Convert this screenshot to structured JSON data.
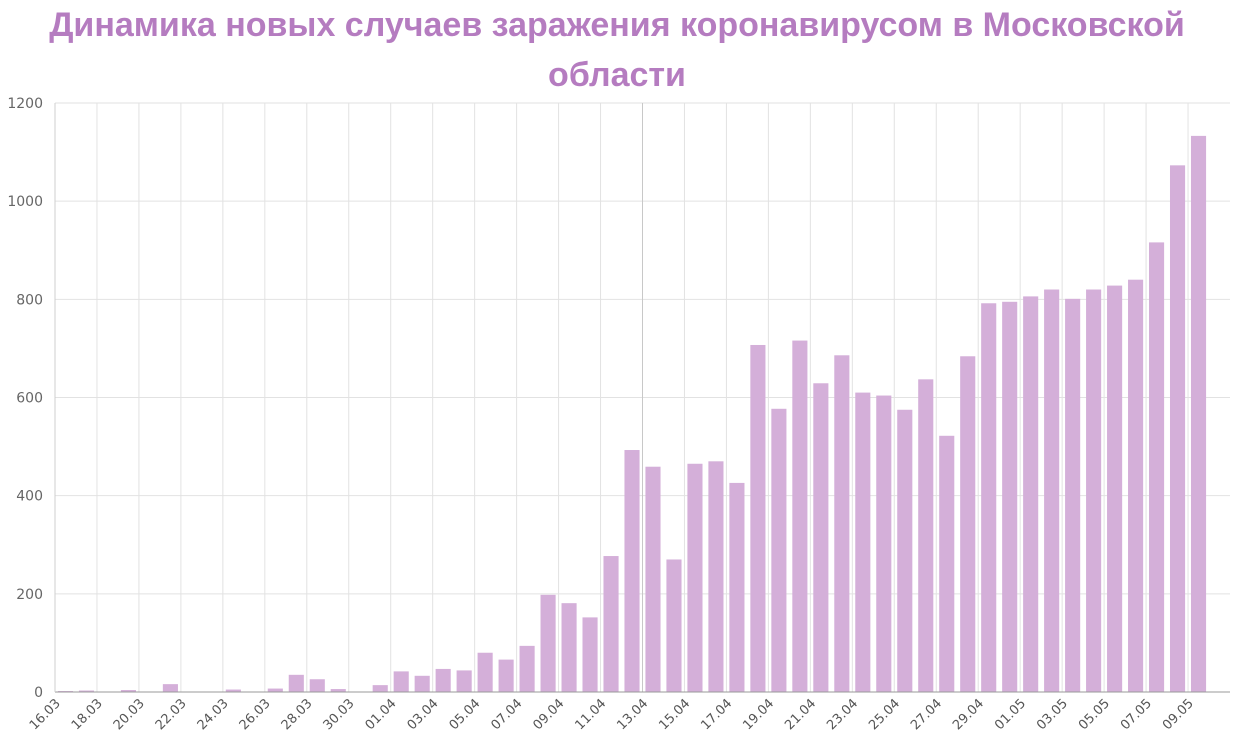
{
  "chart_data": {
    "type": "bar",
    "title": "Динамика новых случаев заражения коронавирусом в Московской области",
    "xlabel": "",
    "ylabel": "",
    "ylim": [
      0,
      1200
    ],
    "yticks": [
      0,
      200,
      400,
      600,
      800,
      1000,
      1200
    ],
    "grid": true,
    "bar_color": "#d4afd9",
    "title_color": "#b57cc0",
    "categories": [
      "16.03",
      "17.03",
      "18.03",
      "19.03",
      "20.03",
      "21.03",
      "22.03",
      "23.03",
      "24.03",
      "25.03",
      "26.03",
      "27.03",
      "28.03",
      "29.03",
      "30.03",
      "31.03",
      "01.04",
      "02.04",
      "03.04",
      "04.04",
      "05.04",
      "06.04",
      "07.04",
      "08.04",
      "09.04",
      "10.04",
      "11.04",
      "12.04",
      "13.04",
      "14.04",
      "15.04",
      "16.04",
      "17.04",
      "18.04",
      "19.04",
      "20.04",
      "21.04",
      "22.04",
      "23.04",
      "24.04",
      "25.04",
      "26.04",
      "27.04",
      "28.04",
      "29.04",
      "30.04",
      "01.05",
      "02.05",
      "03.05",
      "04.05",
      "05.05",
      "06.05",
      "07.05",
      "08.05",
      "09.05",
      "10.05"
    ],
    "visible_tick_labels": [
      "16.03",
      "18.03",
      "20.03",
      "22.03",
      "24.03",
      "26.03",
      "28.03",
      "30.03",
      "01.04",
      "03.04",
      "05.04",
      "07.04",
      "09.04",
      "11.04",
      "13.04",
      "15.04",
      "17.04",
      "19.04",
      "21.04",
      "23.04",
      "25.04",
      "27.04",
      "29.04",
      "01.05",
      "03.05",
      "05.05",
      "07.05",
      "09.05"
    ],
    "values": [
      2,
      3,
      0,
      4,
      0,
      16,
      0,
      0,
      5,
      0,
      7,
      35,
      26,
      6,
      0,
      14,
      42,
      33,
      47,
      44,
      80,
      66,
      94,
      198,
      181,
      152,
      277,
      493,
      459,
      270,
      465,
      470,
      426,
      707,
      577,
      716,
      629,
      686,
      610,
      604,
      575,
      637,
      522,
      684,
      792,
      795,
      806,
      820,
      801,
      820,
      828,
      840,
      916,
      1073,
      1133,
      0
    ]
  }
}
